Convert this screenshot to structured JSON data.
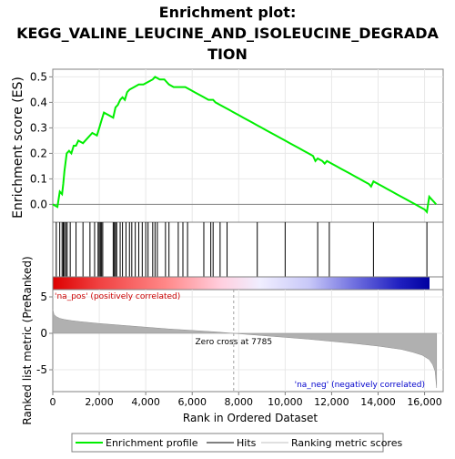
{
  "chart_data": {
    "type": "line",
    "title_lines": [
      "Enrichment plot:",
      "KEGG_VALINE_LEUCINE_AND_ISOLEUCINE_DEGRADA",
      "TION"
    ],
    "top_panel": {
      "ylabel": "Enrichment score (ES)",
      "ylim": [
        -0.07,
        0.53
      ],
      "yticks": [
        0.0,
        0.1,
        0.2,
        0.3,
        0.4,
        0.5
      ],
      "ytick_labels": [
        "0.0",
        "0.1",
        "0.2",
        "0.3",
        "0.4",
        "0.5"
      ],
      "series": [
        {
          "name": "Enrichment profile",
          "color": "#00ee00",
          "x": [
            0,
            200,
            300,
            400,
            450,
            500,
            600,
            700,
            800,
            900,
            1000,
            1100,
            1300,
            1500,
            1700,
            1900,
            2000,
            2100,
            2200,
            2400,
            2600,
            2700,
            2800,
            2900,
            3000,
            3100,
            3200,
            3300,
            3500,
            3700,
            3900,
            4100,
            4300,
            4400,
            4600,
            4800,
            4900,
            5000,
            5200,
            5400,
            5500,
            5700,
            5900,
            6100,
            6300,
            6500,
            6700,
            6900,
            7000,
            7200,
            7400,
            7600,
            7800,
            8000,
            8200,
            8400,
            8600,
            8800,
            9000,
            9200,
            9400,
            9600,
            9800,
            10000,
            10200,
            10400,
            10600,
            10800,
            11000,
            11200,
            11300,
            11400,
            11600,
            11700,
            11800,
            12000,
            12200,
            12400,
            12600,
            12800,
            13000,
            13200,
            13400,
            13600,
            13700,
            13800,
            14000,
            14200,
            14400,
            14600,
            14800,
            15000,
            15200,
            15400,
            15600,
            15800,
            16000,
            16100,
            16200,
            16300,
            16400,
            16500
          ],
          "y": [
            0.0,
            -0.01,
            0.05,
            0.04,
            0.08,
            0.13,
            0.2,
            0.21,
            0.2,
            0.23,
            0.23,
            0.25,
            0.24,
            0.26,
            0.28,
            0.27,
            0.3,
            0.33,
            0.36,
            0.35,
            0.34,
            0.38,
            0.39,
            0.41,
            0.42,
            0.41,
            0.44,
            0.45,
            0.46,
            0.47,
            0.47,
            0.48,
            0.49,
            0.5,
            0.49,
            0.49,
            0.48,
            0.47,
            0.46,
            0.46,
            0.46,
            0.46,
            0.45,
            0.44,
            0.43,
            0.42,
            0.41,
            0.41,
            0.4,
            0.39,
            0.38,
            0.37,
            0.36,
            0.35,
            0.34,
            0.33,
            0.32,
            0.31,
            0.3,
            0.29,
            0.28,
            0.27,
            0.26,
            0.25,
            0.24,
            0.23,
            0.22,
            0.21,
            0.2,
            0.19,
            0.17,
            0.18,
            0.17,
            0.16,
            0.17,
            0.16,
            0.15,
            0.14,
            0.13,
            0.12,
            0.11,
            0.1,
            0.09,
            0.08,
            0.07,
            0.09,
            0.08,
            0.07,
            0.06,
            0.05,
            0.04,
            0.03,
            0.02,
            0.01,
            0.0,
            -0.01,
            -0.02,
            -0.03,
            0.03,
            0.02,
            0.01,
            0.0
          ]
        }
      ]
    },
    "hits": [
      150,
      300,
      400,
      450,
      500,
      560,
      620,
      750,
      1000,
      1300,
      1600,
      1800,
      1950,
      2000,
      2050,
      2100,
      2150,
      2600,
      2650,
      2700,
      2750,
      2900,
      3000,
      3150,
      3300,
      3400,
      3550,
      3700,
      3850,
      4000,
      4100,
      4300,
      4400,
      4500,
      4850,
      5000,
      5400,
      5600,
      5800,
      6500,
      6800,
      6900,
      7200,
      7500,
      8800,
      10000,
      11400,
      11900,
      13800,
      16100
    ],
    "bottom_panel": {
      "ylabel": "Ranked list metric (PreRanked)",
      "ylim": [
        -8,
        6
      ],
      "yticks": [
        5,
        0,
        -5
      ],
      "ytick_labels": [
        "5",
        "0",
        "-5"
      ],
      "xlabel": "Rank in Ordered Dataset",
      "xlim": [
        0,
        16800
      ],
      "xticks": [
        0,
        2000,
        4000,
        6000,
        8000,
        10000,
        12000,
        14000,
        16000
      ],
      "xtick_labels": [
        "0",
        "2,000",
        "4,000",
        "6,000",
        "8,000",
        "10,000",
        "12,000",
        "14,000",
        "16,000"
      ],
      "metric_curve": {
        "x": [
          0,
          50,
          150,
          300,
          500,
          800,
          1200,
          2000,
          3000,
          4000,
          5000,
          6000,
          7000,
          7785,
          9000,
          10000,
          11000,
          12000,
          13000,
          14000,
          15000,
          15500,
          15900,
          16200,
          16350,
          16450,
          16520
        ],
        "y": [
          3.3,
          2.6,
          2.3,
          2.05,
          1.9,
          1.75,
          1.6,
          1.35,
          1.1,
          0.85,
          0.6,
          0.4,
          0.2,
          0.0,
          -0.3,
          -0.55,
          -0.8,
          -1.1,
          -1.4,
          -1.75,
          -2.2,
          -2.6,
          -3.0,
          -3.6,
          -4.3,
          -5.2,
          -7.5
        ]
      },
      "zero_cross_label": "Zero cross at 7785",
      "zero_cross_rank": 7785,
      "pos_label": "'na_pos' (positively correlated)",
      "neg_label": "'na_neg' (negatively correlated)"
    },
    "legend": [
      {
        "label": "Enrichment profile",
        "color": "#00ee00"
      },
      {
        "label": "Hits",
        "color": "#000000"
      },
      {
        "label": "Ranking metric scores",
        "color": "#c0c0c0"
      }
    ]
  }
}
